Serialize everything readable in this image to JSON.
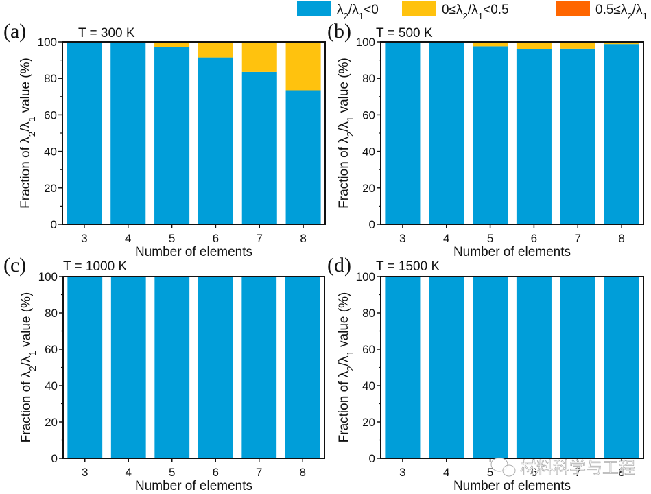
{
  "chart_data": {
    "type": "bar",
    "stacked": true,
    "legend": {
      "placement": "top-right",
      "entries": [
        {
          "name": "λ2/λ1<0",
          "color": "#009ED9"
        },
        {
          "name": "0≤λ2/λ1<0.5",
          "color": "#FFC20E"
        },
        {
          "name": "0.5≤λ2/λ1",
          "color": "#FF6600"
        }
      ]
    },
    "panels": [
      {
        "letter": "(a)",
        "title": "T = 300 K",
        "xlabel": "Number of elements",
        "ylabel": "Fraction of λ2/λ1 value (%)",
        "ylim": [
          0,
          100
        ],
        "yticks": [
          0,
          20,
          40,
          60,
          80,
          100
        ],
        "categories": [
          "3",
          "4",
          "5",
          "6",
          "7",
          "8"
        ],
        "series": [
          {
            "name": "λ2/λ1<0",
            "values": [
              99.8,
              99.3,
              97.0,
              91.5,
              83.5,
              73.5
            ]
          },
          {
            "name": "0≤λ2/λ1<0.5",
            "values": [
              0.2,
              0.6,
              2.7,
              8.2,
              16.0,
              26.0
            ]
          },
          {
            "name": "0.5≤λ2/λ1",
            "values": [
              0.0,
              0.1,
              0.3,
              0.3,
              0.5,
              0.5
            ]
          }
        ]
      },
      {
        "letter": "(b)",
        "title": "T = 500 K",
        "xlabel": "Number of elements",
        "ylabel": "Fraction of λ2/λ1 value (%)",
        "ylim": [
          0,
          100
        ],
        "yticks": [
          0,
          20,
          40,
          60,
          80,
          100
        ],
        "categories": [
          "3",
          "4",
          "5",
          "6",
          "7",
          "8"
        ],
        "series": [
          {
            "name": "λ2/λ1<0",
            "values": [
              100.0,
              99.9,
              97.6,
              96.2,
              96.3,
              98.8
            ]
          },
          {
            "name": "0≤λ2/λ1<0.5",
            "values": [
              0.0,
              0.1,
              2.4,
              3.8,
              3.7,
              1.2
            ]
          },
          {
            "name": "0.5≤λ2/λ1",
            "values": [
              0.0,
              0.0,
              0.0,
              0.0,
              0.0,
              0.0
            ]
          }
        ]
      },
      {
        "letter": "(c)",
        "title": "T = 1000 K",
        "xlabel": "Number of elements",
        "ylabel": "Fraction of λ2/λ1 value (%)",
        "ylim": [
          0,
          100
        ],
        "yticks": [
          0,
          20,
          40,
          60,
          80,
          100
        ],
        "categories": [
          "3",
          "4",
          "5",
          "6",
          "7",
          "8"
        ],
        "series": [
          {
            "name": "λ2/λ1<0",
            "values": [
              100,
              100,
              100,
              100,
              100,
              100
            ]
          },
          {
            "name": "0≤λ2/λ1<0.5",
            "values": [
              0,
              0,
              0,
              0,
              0,
              0
            ]
          },
          {
            "name": "0.5≤λ2/λ1",
            "values": [
              0,
              0,
              0,
              0,
              0,
              0
            ]
          }
        ]
      },
      {
        "letter": "(d)",
        "title": "T = 1500 K",
        "xlabel": "Number of elements",
        "ylabel": "Fraction of λ2/λ1 value (%)",
        "ylim": [
          0,
          100
        ],
        "yticks": [
          0,
          20,
          40,
          60,
          80,
          100
        ],
        "categories": [
          "3",
          "4",
          "5",
          "6",
          "7",
          "8"
        ],
        "series": [
          {
            "name": "λ2/λ1<0",
            "values": [
              100,
              100,
              100,
              100,
              100,
              100
            ]
          },
          {
            "name": "0≤λ2/λ1<0.5",
            "values": [
              0,
              0,
              0,
              0,
              0,
              0
            ]
          },
          {
            "name": "0.5≤λ2/λ1",
            "values": [
              0,
              0,
              0,
              0,
              0,
              0
            ]
          }
        ]
      }
    ]
  },
  "watermark": {
    "text": "材料科学与工程",
    "icon": "wechat-icon"
  }
}
